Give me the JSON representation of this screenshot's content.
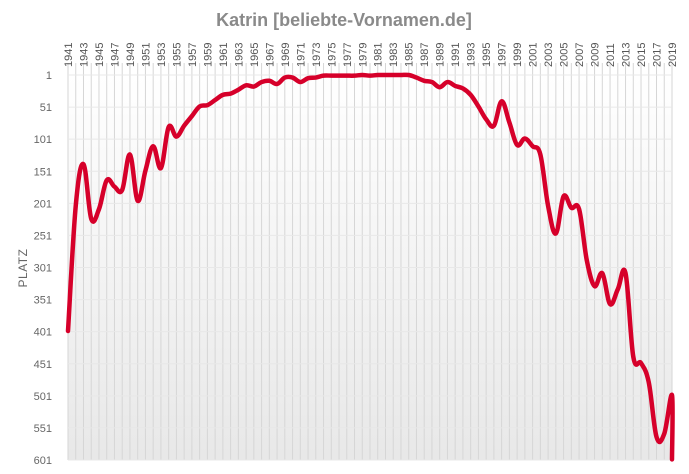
{
  "chart_data": {
    "type": "line",
    "title": "Katrin [beliebte-Vornamen.de]",
    "xlabel": "",
    "ylabel": "PLATZ",
    "y_reversed": true,
    "ylim": [
      1,
      601
    ],
    "yticks": [
      1,
      51,
      101,
      151,
      201,
      251,
      301,
      351,
      401,
      451,
      501,
      551,
      601
    ],
    "xlim": [
      1941,
      2019
    ],
    "xticks": [
      1941,
      1943,
      1945,
      1947,
      1949,
      1951,
      1953,
      1955,
      1957,
      1959,
      1961,
      1963,
      1965,
      1967,
      1969,
      1971,
      1973,
      1975,
      1977,
      1979,
      1981,
      1983,
      1985,
      1987,
      1989,
      1991,
      1993,
      1995,
      1997,
      1999,
      2001,
      2003,
      2005,
      2007,
      2009,
      2011,
      2013,
      2015,
      2017,
      2019
    ],
    "grid": true,
    "line_color": "#d6002a",
    "series": [
      {
        "x": [
          1941,
          1942,
          1943,
          1944,
          1945,
          1946,
          1947,
          1948,
          1949,
          1950,
          1951,
          1952,
          1953,
          1954,
          1955,
          1956,
          1957,
          1958,
          1959,
          1960,
          1961,
          1962,
          1963,
          1964,
          1965,
          1966,
          1967,
          1968,
          1969,
          1970,
          1971,
          1972,
          1973,
          1974,
          1975,
          1976,
          1977,
          1978,
          1979,
          1980,
          1981,
          1982,
          1983,
          1984,
          1985,
          1986,
          1987,
          1988,
          1989,
          1990,
          1991,
          1992,
          1993,
          1994,
          1995,
          1996,
          1997,
          1998,
          1999,
          2000,
          2001,
          2002,
          2003,
          2004,
          2005,
          2006,
          2007,
          2008,
          2009,
          2010,
          2011,
          2012,
          2013,
          2014,
          2015,
          2016,
          2017,
          2018,
          2019
        ],
        "values": [
          400,
          205,
          140,
          225,
          210,
          165,
          175,
          180,
          125,
          197,
          150,
          112,
          146,
          82,
          97,
          80,
          65,
          50,
          48,
          40,
          32,
          30,
          24,
          17,
          19,
          12,
          10,
          15,
          5,
          5,
          12,
          6,
          5,
          2,
          2,
          2,
          2,
          2,
          1,
          2,
          1,
          1,
          1,
          1,
          1,
          5,
          10,
          12,
          20,
          12,
          18,
          22,
          32,
          50,
          70,
          80,
          42,
          75,
          110,
          100,
          112,
          125,
          205,
          248,
          190,
          208,
          210,
          290,
          330,
          310,
          358,
          335,
          310,
          440,
          450,
          480,
          565,
          560,
          500
        ],
        "values_tail": [
          600
        ]
      }
    ]
  }
}
